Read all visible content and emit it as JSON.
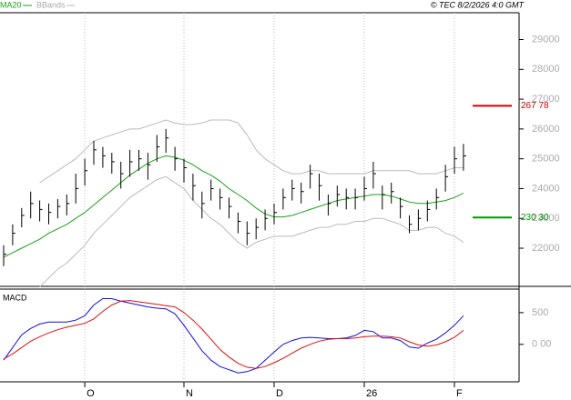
{
  "chart_data": [
    {
      "type": "ohlc",
      "legend": [
        "MA20",
        "BBands"
      ],
      "annotation": "© TEC 8/2/2026 4:0 GMT",
      "categories": [
        null,
        null,
        null,
        null,
        null,
        null,
        null,
        null,
        null,
        "O",
        null,
        null,
        null,
        null,
        null,
        null,
        null,
        null,
        null,
        null,
        "N",
        null,
        null,
        null,
        null,
        null,
        null,
        null,
        null,
        null,
        "D",
        null,
        null,
        null,
        null,
        null,
        null,
        null,
        null,
        null,
        "26",
        null,
        null,
        null,
        null,
        null,
        null,
        null,
        null,
        null,
        "F",
        null
      ],
      "high": [
        22100,
        22800,
        23350,
        23900,
        23600,
        23500,
        23650,
        23800,
        24500,
        25000,
        25600,
        25400,
        25200,
        24900,
        25300,
        25300,
        25200,
        25800,
        26000,
        25400,
        25000,
        24500,
        23900,
        24300,
        24000,
        23700,
        23200,
        22900,
        23000,
        23300,
        23500,
        24000,
        24300,
        24200,
        24800,
        24500,
        23800,
        24100,
        24000,
        24000,
        24400,
        24900,
        24100,
        24200,
        23700,
        23100,
        23300,
        23600,
        24000,
        24800,
        25400,
        25500
      ],
      "low": [
        21400,
        22100,
        22700,
        23000,
        22900,
        22800,
        23000,
        23100,
        23500,
        24100,
        24800,
        24700,
        24500,
        24000,
        24400,
        24600,
        24300,
        24900,
        25200,
        24600,
        24200,
        23600,
        23000,
        23600,
        23300,
        23000,
        22500,
        22100,
        22300,
        22600,
        22800,
        23300,
        23600,
        23500,
        24000,
        23600,
        23100,
        23400,
        23300,
        23300,
        23600,
        24000,
        23300,
        23500,
        23000,
        22500,
        22600,
        22900,
        23300,
        23900,
        24500,
        24600
      ],
      "close": [
        21800,
        22500,
        23100,
        23500,
        23300,
        23200,
        23400,
        23500,
        24000,
        24600,
        25300,
        25100,
        24900,
        24500,
        24900,
        25000,
        24800,
        25400,
        25700,
        25000,
        24700,
        24100,
        23500,
        24000,
        23700,
        23400,
        22900,
        22500,
        22700,
        23000,
        23200,
        23700,
        24000,
        23900,
        24500,
        24100,
        23500,
        23800,
        23700,
        23700,
        24000,
        24500,
        23800,
        23900,
        23400,
        22800,
        23000,
        23300,
        23700,
        24400,
        25000,
        25100
      ],
      "bar_color": "#000000",
      "series": [
        {
          "name": "MA20",
          "color": "#1aa01a",
          "values": [
            21700,
            21850,
            22000,
            22150,
            22300,
            22500,
            22650,
            22800,
            23000,
            23200,
            23450,
            23700,
            23950,
            24200,
            24450,
            24650,
            24850,
            25000,
            25100,
            25050,
            24950,
            24800,
            24600,
            24450,
            24250,
            24000,
            23800,
            23600,
            23350,
            23150,
            23050,
            23050,
            23100,
            23200,
            23300,
            23400,
            23500,
            23600,
            23650,
            23700,
            23750,
            23800,
            23800,
            23750,
            23650,
            23550,
            23500,
            23500,
            23550,
            23600,
            23700,
            23850
          ]
        },
        {
          "name": "BBands",
          "color": "#bbbbbb",
          "upper": [
            null,
            null,
            null,
            null,
            24200,
            24400,
            24600,
            24800,
            25000,
            25300,
            25600,
            25700,
            25800,
            25900,
            26000,
            26000,
            26100,
            26200,
            26300,
            26200,
            26150,
            26150,
            26200,
            26300,
            26300,
            26300,
            26200,
            25800,
            25300,
            25000,
            24800,
            24600,
            24500,
            24500,
            24600,
            24600,
            24500,
            24500,
            24500,
            24500,
            24500,
            24600,
            24600,
            24600,
            24600,
            24600,
            24500,
            24500,
            24500,
            24600,
            24700,
            24700
          ],
          "lower": [
            null,
            null,
            null,
            null,
            20700,
            21000,
            21300,
            21500,
            21800,
            22100,
            22500,
            22800,
            23100,
            23400,
            23700,
            23900,
            24100,
            24300,
            24400,
            24200,
            24000,
            23600,
            23300,
            23000,
            22800,
            22500,
            22200,
            22000,
            22200,
            22300,
            22400,
            22400,
            22400,
            22500,
            22600,
            22700,
            22700,
            22800,
            22800,
            22900,
            22900,
            23000,
            23000,
            22900,
            22800,
            22600,
            22600,
            22700,
            22700,
            22500,
            22400,
            22200
          ]
        }
      ],
      "reference_lines": [
        {
          "value": 26778,
          "label": "267 78",
          "color": "#cc0000"
        },
        {
          "value": 23030,
          "label": "230 30",
          "color": "#009900"
        }
      ],
      "ylim": [
        20720,
        29900
      ],
      "yticks": [
        22000,
        23000,
        24000,
        25000,
        26000,
        27000,
        28000,
        29000
      ]
    },
    {
      "type": "line",
      "title": "MACD",
      "series": [
        {
          "color": "#1010e0",
          "values": [
            -250,
            -50,
            150,
            250,
            320,
            350,
            350,
            350,
            380,
            450,
            620,
            720,
            720,
            680,
            650,
            620,
            590,
            570,
            560,
            480,
            300,
            100,
            -100,
            -250,
            -350,
            -400,
            -450,
            -430,
            -380,
            -250,
            -120,
            0,
            60,
            100,
            110,
            100,
            90,
            90,
            100,
            140,
            220,
            200,
            100,
            100,
            60,
            -40,
            -60,
            20,
            80,
            180,
            300,
            450
          ]
        },
        {
          "color": "#dd1010",
          "values": [
            -230,
            -150,
            -50,
            50,
            120,
            180,
            230,
            270,
            300,
            330,
            400,
            520,
            620,
            680,
            690,
            670,
            650,
            630,
            610,
            590,
            500,
            380,
            240,
            80,
            -80,
            -200,
            -300,
            -360,
            -380,
            -350,
            -290,
            -220,
            -140,
            -60,
            0,
            50,
            80,
            90,
            90,
            100,
            120,
            130,
            130,
            120,
            100,
            40,
            -10,
            -30,
            -10,
            40,
            110,
            220
          ]
        }
      ],
      "ylim": [
        -590,
        870
      ],
      "yticks": [
        {
          "value": 0,
          "label": "0 00"
        },
        500
      ]
    }
  ]
}
